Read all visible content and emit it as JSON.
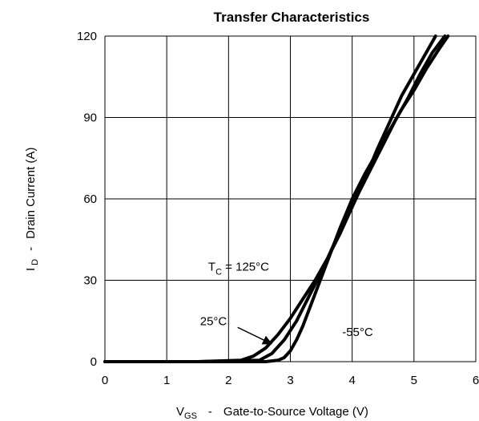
{
  "chart_data": {
    "type": "line",
    "title": "Transfer Characteristics",
    "xlabel": {
      "main": "V",
      "sub": "GS",
      "sep": "-",
      "rest": "Gate-to-Source Voltage (V)"
    },
    "ylabel": {
      "main": "I",
      "sub": "D",
      "sep": "-",
      "rest": "Drain Current (A)"
    },
    "xlim": [
      0,
      6
    ],
    "ylim": [
      0,
      120
    ],
    "xticks": [
      "0",
      "1",
      "2",
      "3",
      "4",
      "5",
      "6"
    ],
    "yticks": [
      "0",
      "30",
      "60",
      "90",
      "120"
    ],
    "grid": true,
    "series": [
      {
        "name": "125°C",
        "x": [
          0,
          1.5,
          2.2,
          2.4,
          2.6,
          2.8,
          3.0,
          3.2,
          3.4,
          3.6,
          3.8,
          4.0,
          4.2,
          4.4,
          4.6,
          4.8,
          5.0,
          5.2,
          5.35
        ],
        "y": [
          0,
          0,
          0.5,
          2,
          5,
          10,
          16,
          23,
          30,
          38,
          47,
          57,
          67,
          78,
          88,
          98,
          106,
          114,
          120
        ]
      },
      {
        "name": "25°C",
        "x": [
          0,
          1.5,
          2.5,
          2.7,
          2.9,
          3.1,
          3.3,
          3.5,
          3.7,
          3.9,
          4.1,
          4.3,
          4.5,
          4.7,
          4.9,
          5.1,
          5.3,
          5.5
        ],
        "y": [
          0,
          0,
          0.5,
          3,
          8,
          15,
          24,
          33,
          43,
          53,
          62,
          71,
          80,
          89,
          97,
          106,
          114,
          120
        ]
      },
      {
        "name": "-55°C",
        "x": [
          0,
          2.6,
          2.8,
          2.9,
          3.0,
          3.1,
          3.2,
          3.4,
          3.6,
          3.8,
          4.0,
          4.2,
          4.4,
          4.6,
          4.8,
          5.0,
          5.2,
          5.4,
          5.55
        ],
        "y": [
          0,
          0,
          0.5,
          1.5,
          4,
          8,
          13,
          25,
          37,
          49,
          60,
          69,
          77,
          85,
          93,
          100,
          108,
          115,
          120
        ]
      }
    ],
    "annotations": [
      {
        "text_main": "T",
        "text_sub": "C",
        "text_rest": " = 125°C",
        "x": 1.8,
        "y": 35
      },
      {
        "text": "25°C",
        "x": 1.5,
        "y": 15,
        "arrow_to": [
          2.7,
          8
        ]
      },
      {
        "text": "-55°C",
        "x": 3.8,
        "y": 11
      }
    ]
  }
}
